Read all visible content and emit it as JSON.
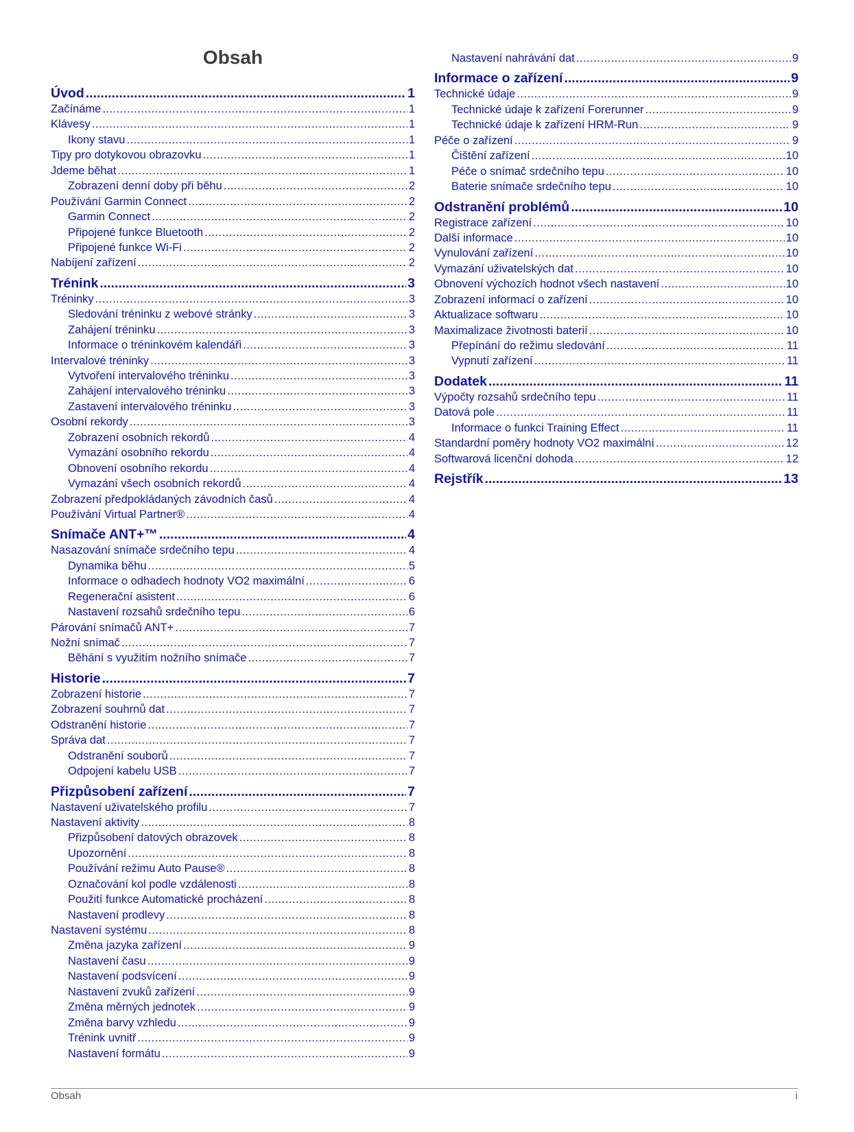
{
  "title": "Obsah",
  "accent_color": "#1414b4",
  "columns": [
    {
      "entries": [
        {
          "type": "h",
          "text": "Úvod",
          "page": "1"
        },
        {
          "type": "l1",
          "text": "Začínáme",
          "page": "1"
        },
        {
          "type": "l1",
          "text": "Klávesy",
          "page": "1"
        },
        {
          "type": "l2",
          "text": "Ikony stavu",
          "page": "1"
        },
        {
          "type": "l1",
          "text": "Tipy pro dotykovou obrazovku",
          "page": "1"
        },
        {
          "type": "l1",
          "text": "Jdeme běhat",
          "page": "1"
        },
        {
          "type": "l2",
          "text": "Zobrazení denní doby při běhu",
          "page": "2"
        },
        {
          "type": "l1",
          "text": "Používání Garmin Connect",
          "page": "2"
        },
        {
          "type": "l2",
          "text": "Garmin Connect",
          "page": "2"
        },
        {
          "type": "l2",
          "text": "Připojené funkce Bluetooth",
          "page": "2"
        },
        {
          "type": "l2",
          "text": "Připojené funkce Wi-Fi",
          "page": "2"
        },
        {
          "type": "l1",
          "text": "Nabíjení zařízení",
          "page": "2"
        },
        {
          "type": "h",
          "text": "Trénink",
          "page": "3"
        },
        {
          "type": "l1",
          "text": "Tréninky",
          "page": "3"
        },
        {
          "type": "l2",
          "text": "Sledování tréninku z webové stránky",
          "page": "3"
        },
        {
          "type": "l2",
          "text": "Zahájení tréninku",
          "page": "3"
        },
        {
          "type": "l2",
          "text": "Informace o tréninkovém kalendáři",
          "page": "3"
        },
        {
          "type": "l1",
          "text": "Intervalové tréninky",
          "page": "3"
        },
        {
          "type": "l2",
          "text": "Vytvoření intervalového tréninku",
          "page": "3"
        },
        {
          "type": "l2",
          "text": "Zahájení intervalového tréninku",
          "page": "3"
        },
        {
          "type": "l2",
          "text": "Zastavení intervalového tréninku",
          "page": "3"
        },
        {
          "type": "l1",
          "text": "Osobní rekordy",
          "page": "3"
        },
        {
          "type": "l2",
          "text": "Zobrazení osobních rekordů",
          "page": "4"
        },
        {
          "type": "l2",
          "text": "Vymazání osobního rekordu",
          "page": "4"
        },
        {
          "type": "l2",
          "text": "Obnovení osobního rekordu",
          "page": "4"
        },
        {
          "type": "l2",
          "text": "Vymazání všech osobních rekordů",
          "page": "4"
        },
        {
          "type": "l1",
          "text": "Zobrazení předpokládaných závodních časů",
          "page": "4"
        },
        {
          "type": "l1",
          "text": "Používání Virtual Partner®",
          "page": "4"
        },
        {
          "type": "h",
          "text": "Snímače ANT+™",
          "page": "4"
        },
        {
          "type": "l1",
          "text": "Nasazování snímače srdečního tepu",
          "page": "4"
        },
        {
          "type": "l2",
          "text": "Dynamika běhu",
          "page": "5"
        },
        {
          "type": "l2",
          "text": "Informace o odhadech hodnoty VO2 maximální",
          "page": "6"
        },
        {
          "type": "l2",
          "text": "Regenerační asistent",
          "page": "6"
        },
        {
          "type": "l2",
          "text": "Nastavení rozsahů srdečního tepu",
          "page": "6"
        },
        {
          "type": "l1",
          "text": "Párování snímačů ANT+",
          "page": "7"
        },
        {
          "type": "l1",
          "text": "Nožní snímač",
          "page": "7"
        },
        {
          "type": "l2",
          "text": "Běhání s využitím nožního snímače",
          "page": "7"
        },
        {
          "type": "h",
          "text": "Historie",
          "page": "7"
        },
        {
          "type": "l1",
          "text": "Zobrazení historie",
          "page": "7"
        },
        {
          "type": "l1",
          "text": "Zobrazení souhrnů dat",
          "page": "7"
        },
        {
          "type": "l1",
          "text": "Odstranění historie",
          "page": "7"
        },
        {
          "type": "l1",
          "text": "Správa dat",
          "page": "7"
        },
        {
          "type": "l2",
          "text": "Odstranění souborů",
          "page": "7"
        },
        {
          "type": "l2",
          "text": "Odpojení kabelu USB",
          "page": "7"
        },
        {
          "type": "h",
          "text": "Přizpůsobení zařízení",
          "page": "7"
        },
        {
          "type": "l1",
          "text": "Nastavení uživatelského profilu",
          "page": "7"
        },
        {
          "type": "l1",
          "text": "Nastavení aktivity",
          "page": "8"
        },
        {
          "type": "l2",
          "text": "Přizpůsobení datových obrazovek",
          "page": "8"
        },
        {
          "type": "l2",
          "text": "Upozornění",
          "page": "8"
        },
        {
          "type": "l2",
          "text": "Používání režimu Auto Pause®",
          "page": "8"
        },
        {
          "type": "l2",
          "text": "Označování kol podle vzdálenosti",
          "page": "8"
        },
        {
          "type": "l2",
          "text": "Použití funkce Automatické procházení",
          "page": "8"
        },
        {
          "type": "l2",
          "text": "Nastavení prodlevy",
          "page": "8"
        },
        {
          "type": "l1",
          "text": "Nastavení systému",
          "page": "8"
        },
        {
          "type": "l2",
          "text": "Změna jazyka zařízení",
          "page": "9"
        },
        {
          "type": "l2",
          "text": "Nastavení času",
          "page": "9"
        },
        {
          "type": "l2",
          "text": "Nastavení podsvícení",
          "page": "9"
        },
        {
          "type": "l2",
          "text": "Nastavení zvuků zařízení",
          "page": "9"
        },
        {
          "type": "l2",
          "text": "Změna měrných jednotek",
          "page": "9"
        },
        {
          "type": "l2",
          "text": "Změna barvy vzhledu",
          "page": "9"
        },
        {
          "type": "l2",
          "text": "Trénink uvnitř",
          "page": "9"
        },
        {
          "type": "l2",
          "text": "Nastavení formátu",
          "page": "9"
        }
      ]
    },
    {
      "entries": [
        {
          "type": "l2",
          "text": "Nastavení nahrávání dat",
          "page": "9"
        },
        {
          "type": "h",
          "text": "Informace o zařízení",
          "page": "9"
        },
        {
          "type": "l1",
          "text": "Technické údaje",
          "page": "9"
        },
        {
          "type": "l2",
          "text": "Technické údaje k zařízení Forerunner",
          "page": "9"
        },
        {
          "type": "l2",
          "text": "Technické údaje k zařízení HRM-Run",
          "page": "9"
        },
        {
          "type": "l1",
          "text": "Péče o zařízení",
          "page": "9"
        },
        {
          "type": "l2",
          "text": "Čištění zařízení",
          "page": "10"
        },
        {
          "type": "l2",
          "text": "Péče o snímač srdečního tepu",
          "page": "10"
        },
        {
          "type": "l2",
          "text": "Baterie snímače srdečního tepu",
          "page": "10"
        },
        {
          "type": "h",
          "text": "Odstranění problémů",
          "page": "10"
        },
        {
          "type": "l1",
          "text": "Registrace zařízení",
          "page": "10"
        },
        {
          "type": "l1",
          "text": "Další informace",
          "page": "10"
        },
        {
          "type": "l1",
          "text": "Vynulování zařízení",
          "page": "10"
        },
        {
          "type": "l1",
          "text": "Vymazání uživatelských dat",
          "page": "10"
        },
        {
          "type": "l1",
          "text": "Obnovení výchozích hodnot všech nastavení",
          "page": "10"
        },
        {
          "type": "l1",
          "text": "Zobrazení informací o zařízení",
          "page": "10"
        },
        {
          "type": "l1",
          "text": "Aktualizace softwaru",
          "page": "10"
        },
        {
          "type": "l1",
          "text": "Maximalizace životnosti baterií",
          "page": "10"
        },
        {
          "type": "l2",
          "text": "Přepínání do režimu sledování",
          "page": "11"
        },
        {
          "type": "l2",
          "text": "Vypnutí zařízení",
          "page": "11"
        },
        {
          "type": "h",
          "text": "Dodatek",
          "page": "11"
        },
        {
          "type": "l1",
          "text": "Výpočty rozsahů srdečního tepu",
          "page": "11"
        },
        {
          "type": "l1",
          "text": "Datová pole",
          "page": "11"
        },
        {
          "type": "l2",
          "text": "Informace o funkci Training Effect",
          "page": "11"
        },
        {
          "type": "l1",
          "text": "Standardní poměry hodnoty VO2 maximální",
          "page": "12"
        },
        {
          "type": "l1",
          "text": "Softwarová licenční dohoda",
          "page": "12"
        },
        {
          "type": "h",
          "text": "Rejstřík",
          "page": "13"
        }
      ]
    }
  ],
  "footer": {
    "label": "Obsah",
    "page_number": "i"
  }
}
